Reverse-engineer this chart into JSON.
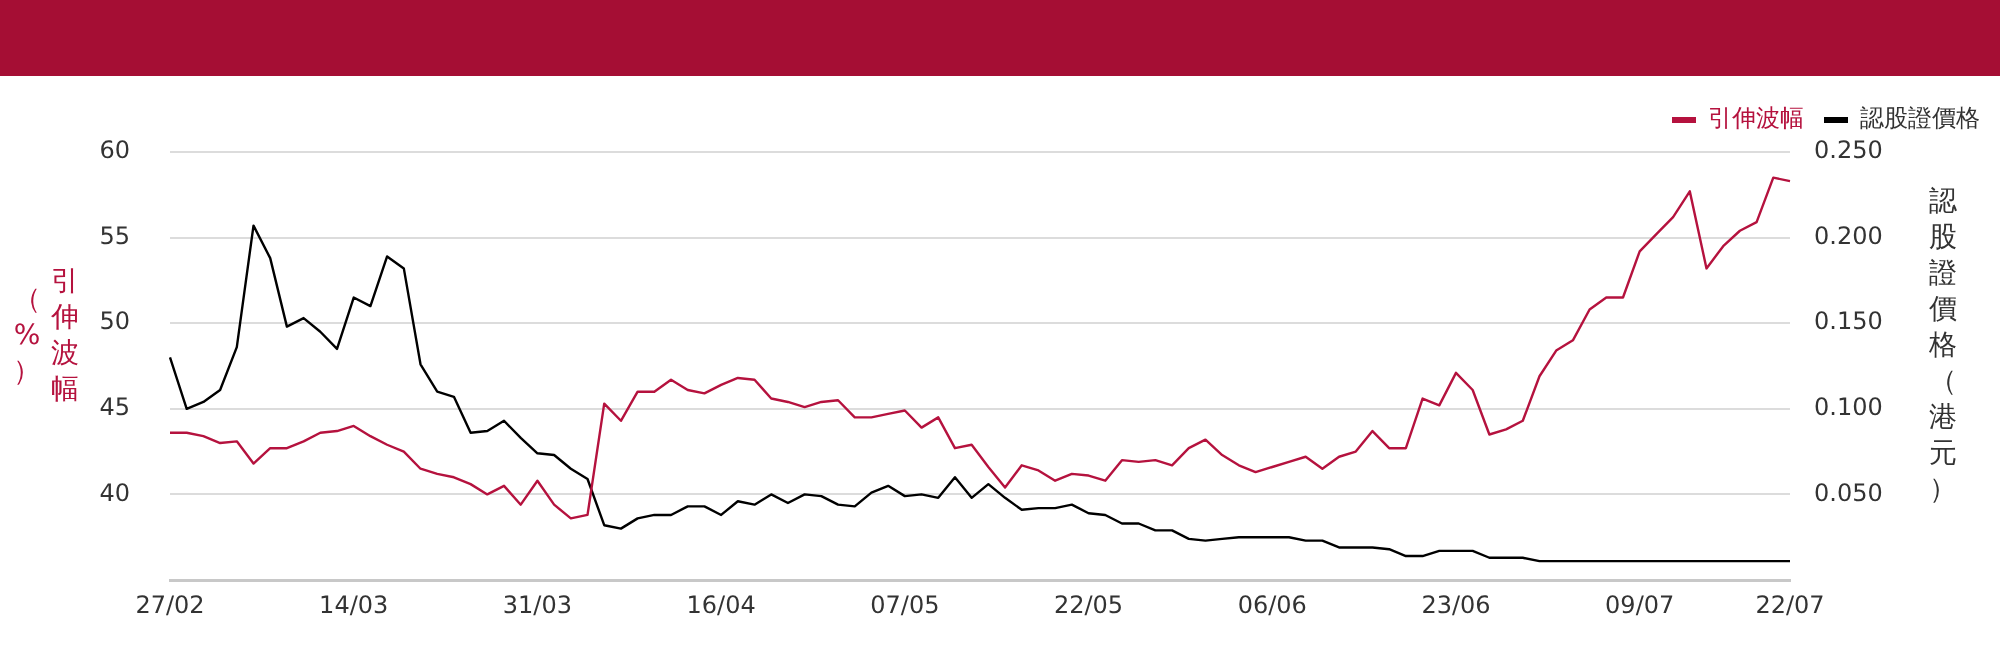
{
  "chart_data": {
    "type": "line",
    "categories": [
      "27/02",
      null,
      null,
      null,
      null,
      null,
      null,
      null,
      null,
      null,
      null,
      "14/03",
      null,
      null,
      null,
      null,
      null,
      null,
      null,
      null,
      null,
      null,
      "31/03",
      null,
      null,
      null,
      null,
      null,
      null,
      null,
      null,
      null,
      null,
      "16/04",
      null,
      null,
      null,
      null,
      null,
      null,
      null,
      null,
      null,
      null,
      "07/05",
      null,
      null,
      null,
      null,
      null,
      null,
      null,
      null,
      null,
      null,
      "22/05",
      null,
      null,
      null,
      null,
      null,
      null,
      null,
      null,
      null,
      null,
      "06/06",
      null,
      null,
      null,
      null,
      null,
      null,
      null,
      null,
      null,
      null,
      "23/06",
      null,
      null,
      null,
      null,
      null,
      null,
      null,
      null,
      null,
      null,
      "09/07",
      null,
      null,
      null,
      null,
      null,
      null,
      null,
      null,
      "22/07"
    ],
    "series": [
      {
        "name": "引伸波幅",
        "color": "#b5123e",
        "axis": "y",
        "values": [
          43.6,
          43.6,
          43.4,
          43.0,
          43.1,
          41.8,
          42.7,
          42.7,
          43.1,
          43.6,
          43.7,
          44.0,
          43.4,
          42.9,
          42.5,
          41.5,
          41.2,
          41.0,
          40.6,
          40.0,
          40.5,
          39.4,
          40.8,
          39.4,
          38.6,
          38.8,
          45.3,
          44.3,
          46.0,
          46.0,
          46.7,
          46.1,
          45.9,
          46.4,
          46.8,
          46.7,
          45.6,
          45.4,
          45.1,
          45.4,
          45.5,
          44.5,
          44.5,
          44.7,
          44.9,
          43.9,
          44.5,
          42.7,
          42.9,
          41.6,
          40.4,
          41.7,
          41.4,
          40.8,
          41.2,
          41.1,
          40.8,
          42.0,
          41.9,
          42.0,
          41.7,
          42.7,
          43.2,
          42.3,
          41.7,
          41.3,
          41.6,
          41.9,
          42.2,
          41.5,
          42.2,
          42.5,
          43.7,
          42.7,
          42.7,
          45.6,
          45.2,
          47.1,
          46.1,
          43.5,
          43.8,
          44.3,
          46.9,
          48.4,
          49.0,
          50.8,
          51.5,
          51.5,
          54.2,
          55.2,
          56.2,
          57.7,
          53.2,
          54.5,
          55.4,
          55.9,
          58.5,
          58.3
        ]
      },
      {
        "name": "認股證價格",
        "color": "#000000",
        "axis": "y2",
        "values": [
          0.13,
          0.1,
          0.104,
          0.111,
          0.136,
          0.207,
          0.188,
          0.148,
          0.153,
          0.145,
          0.135,
          0.165,
          0.16,
          0.189,
          0.182,
          0.126,
          0.11,
          0.107,
          0.086,
          0.087,
          0.093,
          0.083,
          0.074,
          0.073,
          0.065,
          0.059,
          0.032,
          0.03,
          0.036,
          0.038,
          0.038,
          0.043,
          0.043,
          0.038,
          0.046,
          0.044,
          0.05,
          0.045,
          0.05,
          0.049,
          0.044,
          0.043,
          0.051,
          0.055,
          0.049,
          0.05,
          0.048,
          0.06,
          0.048,
          0.056,
          0.048,
          0.041,
          0.042,
          0.042,
          0.044,
          0.039,
          0.038,
          0.033,
          0.033,
          0.029,
          0.029,
          0.024,
          0.023,
          0.024,
          0.025,
          0.025,
          0.025,
          0.025,
          0.023,
          0.023,
          0.019,
          0.019,
          0.019,
          0.018,
          0.014,
          0.014,
          0.017,
          0.017,
          0.017,
          0.013,
          0.013,
          0.013,
          0.011,
          0.011,
          0.011,
          0.011,
          0.011,
          0.011,
          0.011,
          0.011,
          0.011,
          0.011,
          0.011,
          0.011,
          0.011,
          0.011,
          0.011,
          0.011
        ]
      }
    ],
    "ylabel": "引伸波幅（%）",
    "y2label": "認股證價格（港元）",
    "ylim": [
      35,
      60
    ],
    "yticks": [
      40,
      45,
      50,
      55,
      60
    ],
    "y2lim": [
      0,
      0.25
    ],
    "y2ticks": [
      {
        "value": 0.05,
        "label": "0.050"
      },
      {
        "value": 0.1,
        "label": "0.100"
      },
      {
        "value": 0.15,
        "label": "0.150"
      },
      {
        "value": 0.2,
        "label": "0.200"
      },
      {
        "value": 0.25,
        "label": "0.250"
      }
    ],
    "grid": "y",
    "legend": "top right",
    "marker": "none"
  }
}
